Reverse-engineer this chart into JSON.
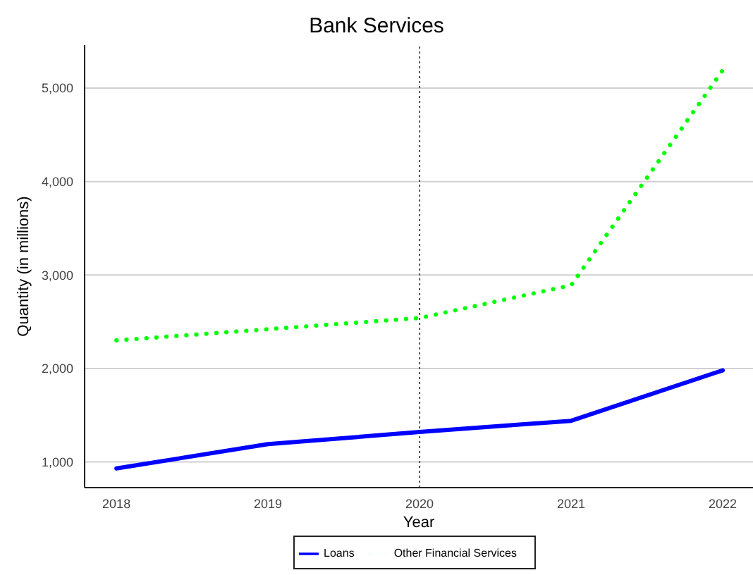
{
  "chart_data": {
    "type": "line",
    "title": "Bank Services",
    "xlabel": "Year",
    "ylabel": "Quantity (in millions)",
    "x": [
      2018,
      2019,
      2020,
      2021,
      2022
    ],
    "series": [
      {
        "name": "Loans",
        "color": "#0000ff",
        "values": [
          930,
          1190,
          1320,
          1440,
          1980
        ],
        "line_style": "solid"
      },
      {
        "name": "Other Financial Services",
        "color": "#00ff00",
        "values": [
          2300,
          2420,
          2540,
          2890,
          5190
        ],
        "line_style": "dotted"
      }
    ],
    "xlim": [
      2017.79,
      2022.2
    ],
    "xticks": [
      2018,
      2019,
      2020,
      2021,
      2022
    ],
    "ylim": [
      725,
      5460
    ],
    "yticks": [
      {
        "value": 1000,
        "label": "1,000"
      },
      {
        "value": 2000,
        "label": "2,000"
      },
      {
        "value": 3000,
        "label": "3,000"
      },
      {
        "value": 4000,
        "label": "4,000"
      },
      {
        "value": 5000,
        "label": "5,000"
      }
    ],
    "ref_lines": [
      {
        "axis": "x",
        "value": 2020,
        "color": "#555555",
        "line_style": "dotted"
      }
    ],
    "grid": "y",
    "legend": "bottom",
    "marker": "none"
  }
}
